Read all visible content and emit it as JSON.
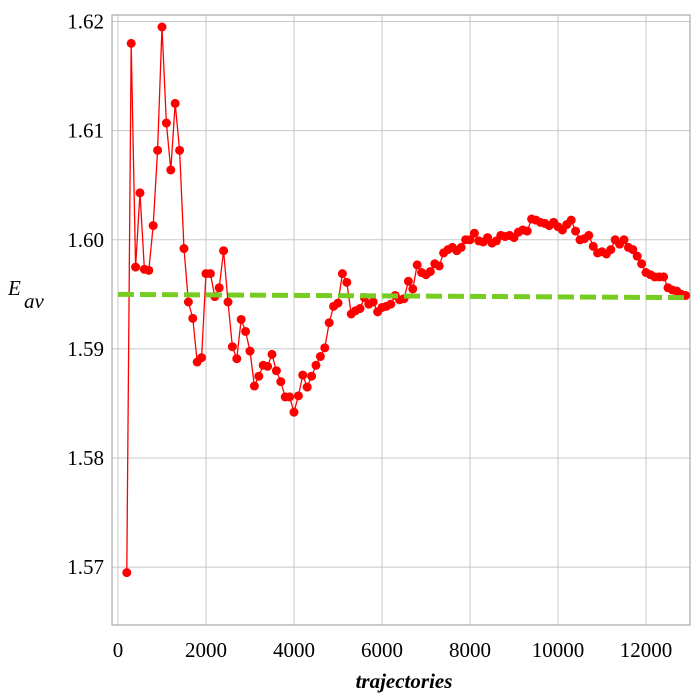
{
  "chart_data": {
    "type": "line",
    "ylabel": "E",
    "ylabel_sub": "av",
    "xlabel": "trajectories",
    "xlim": [
      -136,
      13000
    ],
    "ylim": [
      1.5647,
      1.6206
    ],
    "xticks": [
      0,
      2000,
      4000,
      6000,
      8000,
      10000,
      12000
    ],
    "yticks": [
      1.57,
      1.58,
      1.59,
      {
        "value": 1.6,
        "label": "1.60"
      },
      1.61,
      1.62
    ],
    "grid": true,
    "series": [
      {
        "color": "#ff0000",
        "markers": true,
        "x": [
          200,
          300,
          400,
          500,
          600,
          700,
          800,
          900,
          1000,
          1100,
          1200,
          1300,
          1400,
          1500,
          1600,
          1700,
          1800,
          1900,
          2000,
          2100,
          2200,
          2300,
          2400,
          2500,
          2600,
          2700,
          2800,
          2900,
          3000,
          3100,
          3200,
          3300,
          3400,
          3500,
          3600,
          3700,
          3800,
          3900,
          4000,
          4100,
          4200,
          4300,
          4400,
          4500,
          4600,
          4700,
          4800,
          4900,
          5000,
          5100,
          5200,
          5300,
          5400,
          5500,
          5600,
          5700,
          5800,
          5900,
          6000,
          6100,
          6200,
          6300,
          6400,
          6500,
          6600,
          6700,
          6800,
          6900,
          7000,
          7100,
          7200,
          7300,
          7400,
          7500,
          7600,
          7700,
          7800,
          7900,
          8000,
          8100,
          8200,
          8300,
          8400,
          8500,
          8600,
          8700,
          8800,
          8900,
          9000,
          9100,
          9200,
          9300,
          9400,
          9500,
          9600,
          9700,
          9800,
          9900,
          10000,
          10100,
          10200,
          10300,
          10400,
          10500,
          10600,
          10700,
          10800,
          10900,
          11000,
          11100,
          11200,
          11300,
          11400,
          11500,
          11600,
          11700,
          11800,
          11900,
          12000,
          12100,
          12200,
          12300,
          12400,
          12500,
          12600,
          12700,
          12800,
          12900
        ],
        "values": [
          1.5695,
          1.618,
          1.5975,
          1.6043,
          1.5973,
          1.5972,
          1.6013,
          1.6082,
          1.6195,
          1.6107,
          1.6064,
          1.6125,
          1.6082,
          1.5992,
          1.5943,
          1.5928,
          1.5888,
          1.5892,
          1.5969,
          1.5969,
          1.5948,
          1.5956,
          1.599,
          1.5943,
          1.5902,
          1.5891,
          1.5927,
          1.5916,
          1.5898,
          1.5866,
          1.5875,
          1.5885,
          1.5884,
          1.5895,
          1.588,
          1.587,
          1.5856,
          1.5856,
          1.5842,
          1.5857,
          1.5876,
          1.5865,
          1.5875,
          1.5885,
          1.5893,
          1.5901,
          1.5924,
          1.5939,
          1.5942,
          1.5969,
          1.5961,
          1.5932,
          1.5935,
          1.5937,
          1.5947,
          1.5941,
          1.5943,
          1.5934,
          1.5938,
          1.5939,
          1.5941,
          1.5949,
          1.5945,
          1.5946,
          1.5962,
          1.5955,
          1.5977,
          1.597,
          1.5968,
          1.5971,
          1.5978,
          1.5976,
          1.5988,
          1.5991,
          1.5993,
          1.599,
          1.5993,
          1.6,
          1.6,
          1.6006,
          1.5999,
          1.5998,
          1.6002,
          1.5997,
          1.5999,
          1.6004,
          1.6003,
          1.6004,
          1.6002,
          1.6007,
          1.6009,
          1.6008,
          1.6019,
          1.6018,
          1.6016,
          1.6015,
          1.6013,
          1.6016,
          1.6012,
          1.6009,
          1.6014,
          1.6018,
          1.6008,
          1.6,
          1.6001,
          1.6004,
          1.5994,
          1.5988,
          1.5989,
          1.5987,
          1.5991,
          1.6,
          1.5996,
          1.6,
          1.5993,
          1.5991,
          1.5985,
          1.5978,
          1.597,
          1.5968,
          1.5966,
          1.5966,
          1.5966,
          1.5956,
          1.5954,
          1.5953,
          1.595,
          1.5949
        ]
      },
      {
        "color": "#77cc22",
        "dashed": true,
        "x": [
          0,
          13000
        ],
        "values": [
          1.595,
          1.5947
        ]
      }
    ]
  }
}
